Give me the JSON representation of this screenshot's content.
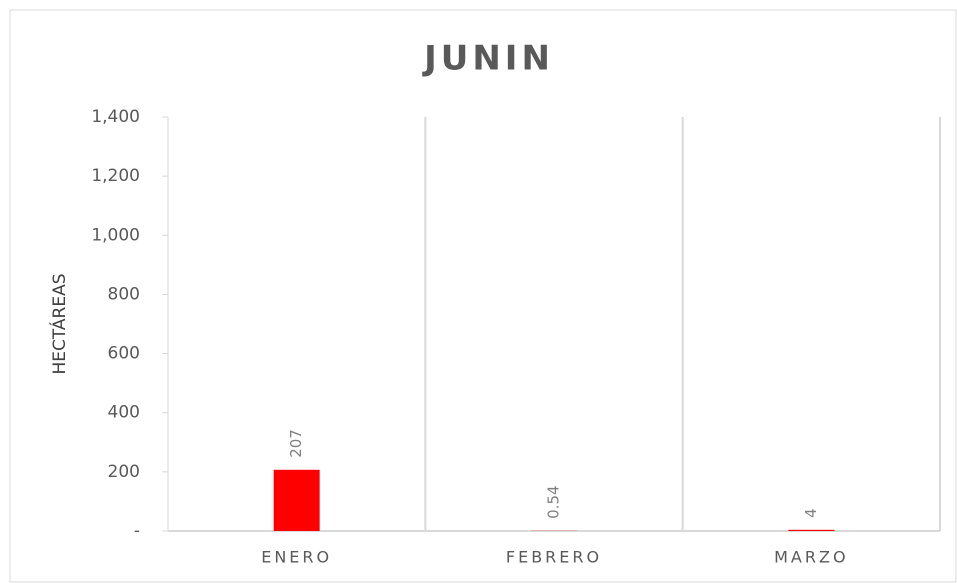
{
  "chart_data": {
    "type": "bar",
    "title": "JUNIN",
    "y_label": "HECTÁREAS",
    "categories": [
      "ENERO",
      "FEBRERO",
      "MARZO"
    ],
    "values": [
      207,
      0.54,
      4
    ],
    "color": "#ff0000",
    "ylim": [
      0,
      1400
    ],
    "yticks": [
      {
        "value": 0,
        "label": "-"
      },
      200,
      400,
      600,
      800,
      {
        "value": 1000,
        "label": "1,000"
      },
      {
        "value": 1200,
        "label": "1,200"
      },
      {
        "value": 1400,
        "label": "1,400"
      }
    ],
    "grid": true
  }
}
